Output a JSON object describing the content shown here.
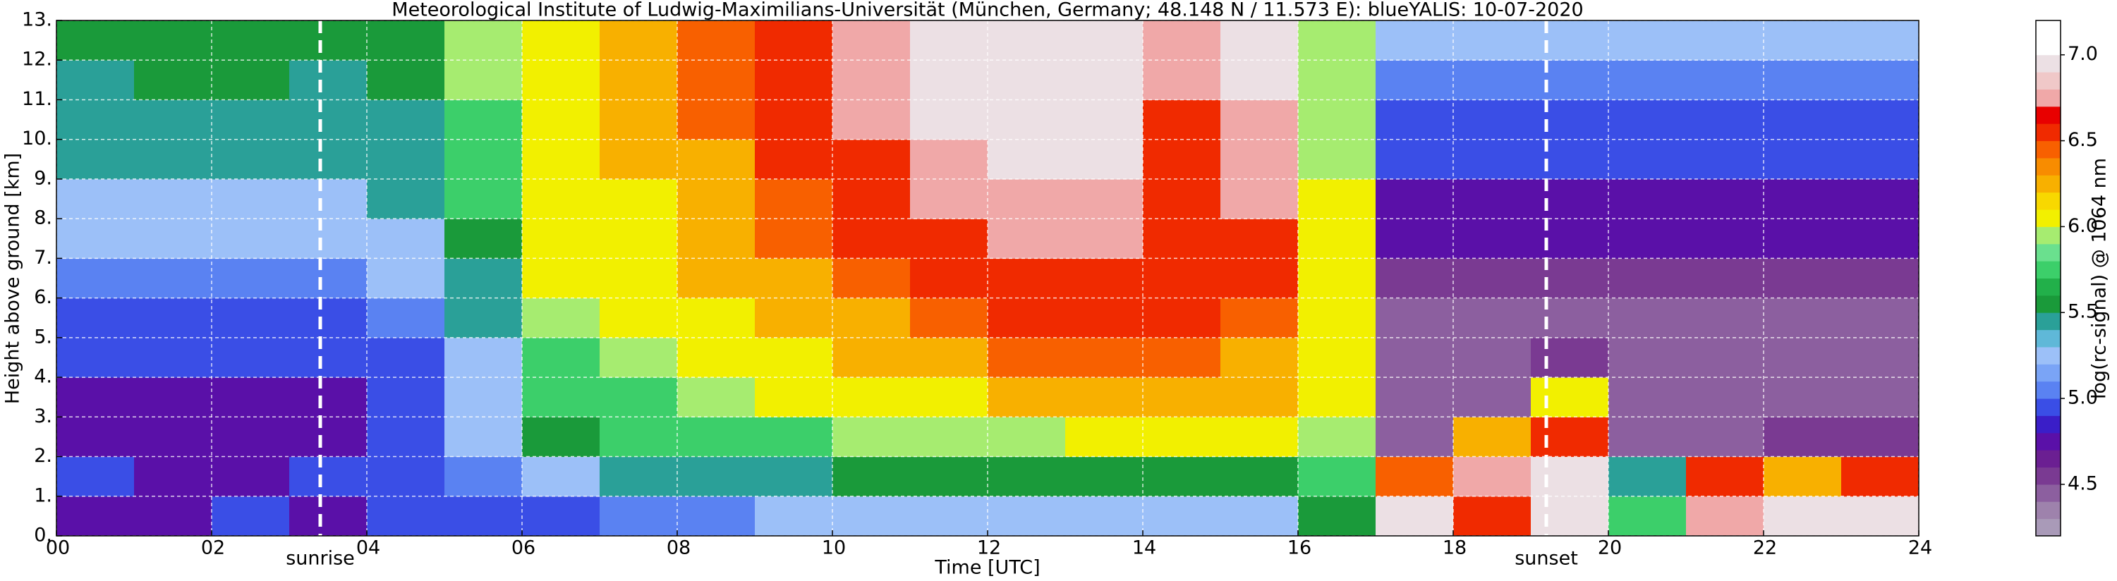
{
  "chart_data": {
    "type": "heatmap",
    "title": "Meteorological Institute of Ludwig-Maximilians-Universität (München, Germany; 48.148 N / 11.573 E):    blueYALIS: 10-07-2020",
    "x_label": "Time [UTC]",
    "y_label": "Height above ground [km]",
    "colorbar_label": "log(rc-signal) @ 1064 nm",
    "x": [
      0.5,
      1.5,
      2.5,
      3.5,
      4.5,
      5.5,
      6.5,
      7.5,
      8.5,
      9.5,
      10.5,
      11.5,
      12.5,
      13.5,
      14.5,
      15.5,
      16.5,
      17.5,
      18.5,
      19.5,
      20.5,
      21.5,
      22.5,
      23.5
    ],
    "y": [
      0.5,
      1.5,
      2.5,
      3.5,
      4.5,
      5.5,
      6.5,
      7.5,
      8.5,
      9.5,
      10.5,
      11.5,
      12.5
    ],
    "z": [
      [
        4.8,
        4.8,
        4.9,
        4.8,
        4.9,
        5.0,
        5.0,
        5.1,
        5.1,
        5.2,
        5.2,
        5.2,
        5.2,
        5.2,
        5.2,
        5.2,
        5.6,
        6.9,
        6.6,
        7.0,
        5.8,
        6.8,
        7.0,
        7.0
      ],
      [
        4.9,
        4.8,
        4.8,
        4.9,
        5.0,
        5.1,
        5.3,
        5.4,
        5.5,
        5.5,
        5.6,
        5.6,
        5.6,
        5.6,
        5.6,
        5.6,
        5.8,
        6.4,
        6.8,
        6.9,
        5.5,
        6.5,
        6.2,
        6.6
      ],
      [
        4.8,
        4.7,
        4.7,
        4.8,
        5.0,
        5.3,
        5.6,
        5.7,
        5.8,
        5.8,
        5.9,
        5.9,
        5.9,
        6.0,
        6.0,
        6.0,
        5.9,
        4.5,
        6.2,
        6.5,
        4.5,
        4.5,
        4.6,
        4.6
      ],
      [
        4.8,
        4.8,
        4.8,
        4.8,
        4.9,
        5.2,
        5.7,
        5.8,
        5.9,
        6.0,
        6.0,
        6.1,
        6.2,
        6.2,
        6.2,
        6.2,
        6.0,
        4.4,
        4.5,
        6.0,
        4.4,
        4.4,
        4.4,
        4.5
      ],
      [
        4.9,
        4.9,
        4.9,
        4.9,
        5.0,
        5.3,
        5.8,
        5.9,
        6.0,
        6.1,
        6.2,
        6.3,
        6.4,
        6.4,
        6.4,
        6.3,
        6.0,
        4.4,
        4.4,
        4.6,
        4.4,
        4.4,
        4.4,
        4.4
      ],
      [
        5.0,
        5.0,
        5.0,
        5.0,
        5.1,
        5.4,
        5.9,
        6.0,
        6.1,
        6.2,
        6.3,
        6.4,
        6.5,
        6.5,
        6.5,
        6.4,
        6.0,
        4.5,
        4.5,
        4.5,
        4.5,
        4.5,
        4.5,
        4.5
      ],
      [
        5.1,
        5.1,
        5.1,
        5.1,
        5.2,
        5.5,
        6.0,
        6.0,
        6.2,
        6.3,
        6.4,
        6.5,
        6.6,
        6.6,
        6.5,
        6.5,
        6.0,
        4.6,
        4.6,
        4.6,
        4.6,
        4.6,
        4.6,
        4.6
      ],
      [
        5.2,
        5.2,
        5.2,
        5.2,
        5.3,
        5.6,
        6.0,
        6.1,
        6.2,
        6.4,
        6.5,
        6.6,
        6.7,
        6.7,
        6.6,
        6.6,
        6.0,
        4.7,
        4.7,
        4.7,
        4.7,
        4.7,
        4.7,
        4.7
      ],
      [
        5.3,
        5.3,
        5.3,
        5.3,
        5.4,
        5.7,
        6.0,
        6.1,
        6.3,
        6.4,
        6.6,
        6.7,
        6.8,
        6.8,
        6.6,
        6.7,
        6.0,
        4.8,
        4.8,
        4.8,
        4.8,
        4.8,
        4.8,
        4.8
      ],
      [
        5.4,
        5.4,
        5.4,
        5.4,
        5.5,
        5.8,
        6.1,
        6.2,
        6.3,
        6.5,
        6.6,
        6.8,
        6.9,
        6.9,
        6.6,
        6.8,
        5.9,
        4.9,
        4.9,
        4.9,
        4.9,
        4.9,
        4.9,
        4.9
      ],
      [
        5.5,
        5.5,
        5.5,
        5.5,
        5.5,
        5.8,
        6.1,
        6.2,
        6.4,
        6.5,
        6.7,
        6.9,
        7.0,
        7.0,
        6.6,
        6.8,
        5.9,
        5.0,
        5.0,
        5.0,
        5.0,
        5.0,
        5.0,
        5.0
      ],
      [
        5.5,
        5.6,
        5.6,
        5.5,
        5.6,
        5.9,
        6.1,
        6.3,
        6.4,
        6.6,
        6.7,
        6.9,
        7.0,
        7.0,
        6.7,
        6.9,
        5.9,
        5.1,
        5.1,
        5.1,
        5.1,
        5.1,
        5.1,
        5.1
      ],
      [
        5.6,
        5.6,
        5.6,
        5.6,
        5.6,
        5.9,
        6.1,
        6.3,
        6.4,
        6.6,
        6.8,
        6.9,
        7.0,
        7.0,
        6.7,
        6.9,
        5.9,
        5.2,
        5.2,
        5.2,
        5.2,
        5.2,
        5.2,
        5.2
      ]
    ],
    "xlim": [
      0,
      24
    ],
    "ylim": [
      0,
      13
    ],
    "clim": [
      4.2,
      7.2
    ],
    "xticks": [
      {
        "value": 0,
        "label": "00"
      },
      {
        "value": 2,
        "label": "02"
      },
      {
        "value": 4,
        "label": "04"
      },
      {
        "value": 6,
        "label": "06"
      },
      {
        "value": 8,
        "label": "08"
      },
      {
        "value": 10,
        "label": "10"
      },
      {
        "value": 12,
        "label": "12"
      },
      {
        "value": 14,
        "label": "14"
      },
      {
        "value": 16,
        "label": "16"
      },
      {
        "value": 18,
        "label": "18"
      },
      {
        "value": 20,
        "label": "20"
      },
      {
        "value": 22,
        "label": "22"
      },
      {
        "value": 24,
        "label": "24"
      }
    ],
    "yticks": [
      {
        "value": 0,
        "label": "0."
      },
      {
        "value": 1,
        "label": "1."
      },
      {
        "value": 2,
        "label": "2."
      },
      {
        "value": 3,
        "label": "3."
      },
      {
        "value": 4,
        "label": "4."
      },
      {
        "value": 5,
        "label": "5."
      },
      {
        "value": 6,
        "label": "6."
      },
      {
        "value": 7,
        "label": "7."
      },
      {
        "value": 8,
        "label": "8."
      },
      {
        "value": 9,
        "label": "9."
      },
      {
        "value": 10,
        "label": "10."
      },
      {
        "value": 11,
        "label": "11."
      },
      {
        "value": 12,
        "label": "12."
      },
      {
        "value": 13,
        "label": "13."
      }
    ],
    "cticks": [
      4.5,
      {
        "value": 5,
        "label": "5.0"
      },
      5.5,
      {
        "value": 6,
        "label": "6.0"
      },
      6.5,
      {
        "value": 7,
        "label": "7.0"
      }
    ],
    "grid": true,
    "colors": [
      "#a99ab8",
      "#9e82ac",
      "#8c5f9f",
      "#7a3a92",
      "#6b1f92",
      "#5a10a8",
      "#3a1ec8",
      "#3a4ee6",
      "#5a82f2",
      "#7aa4f6",
      "#9cc0f8",
      "#5fb8d8",
      "#2aa098",
      "#1a9a3a",
      "#22b04a",
      "#3ccf6a",
      "#6ae08e",
      "#a6ec70",
      "#f2f000",
      "#f8d800",
      "#f8b000",
      "#f88c00",
      "#f86000",
      "#f02a00",
      "#e80000",
      "#f0a8a8",
      "#f0c8c8",
      "#ece0e4",
      "#ffffff",
      "#ffffff"
    ],
    "annotations": [
      {
        "text": "sunrise",
        "x": 3.4
      },
      {
        "text": "sunset",
        "x": 19.2
      }
    ]
  }
}
